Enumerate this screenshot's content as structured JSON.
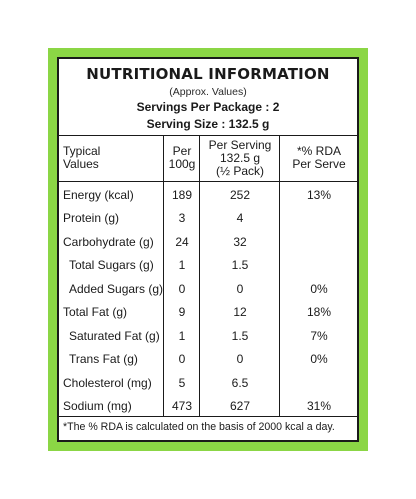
{
  "label": {
    "title": "NUTRITIONAL INFORMATION",
    "subtitle": "(Approx. Values)",
    "servings_per_package": "Servings Per Package : 2",
    "serving_size": "Serving Size : 132.5 g"
  },
  "columns": {
    "c1_line1": "Typical",
    "c1_line2": "Values",
    "c2_line1": "Per",
    "c2_line2": "100g",
    "c3_line1": "Per Serving",
    "c3_line2": "132.5 g",
    "c3_line3": "(½ Pack)",
    "c4_line1": "*% RDA",
    "c4_line2": "Per Serve"
  },
  "rows": [
    {
      "name": "Energy (kcal)",
      "per100": "189",
      "perServing": "252",
      "rda": "13%"
    },
    {
      "name": "Protein (g)",
      "per100": "3",
      "perServing": "4",
      "rda": ""
    },
    {
      "name": "Carbohydrate (g)",
      "per100": "24",
      "perServing": "32",
      "rda": ""
    },
    {
      "name": "Total Sugars (g)",
      "per100": "1",
      "perServing": "1.5",
      "rda": ""
    },
    {
      "name": "Added Sugars (g)",
      "per100": "0",
      "perServing": "0",
      "rda": "0%"
    },
    {
      "name": "Total Fat (g)",
      "per100": "9",
      "perServing": "12",
      "rda": "18%"
    },
    {
      "name": "Saturated Fat (g)",
      "per100": "1",
      "perServing": "1.5",
      "rda": "7%"
    },
    {
      "name": "Trans Fat (g)",
      "per100": "0",
      "perServing": "0",
      "rda": "0%"
    },
    {
      "name": "Cholesterol (mg)",
      "per100": "5",
      "perServing": "6.5",
      "rda": ""
    },
    {
      "name": "Sodium (mg)",
      "per100": "473",
      "perServing": "627",
      "rda": "31%"
    }
  ],
  "footnote": "*The % RDA is calculated on the basis of 2000 kcal a day.",
  "colors": {
    "frame_green": "#8bd645",
    "ink": "#1a1a1a"
  }
}
